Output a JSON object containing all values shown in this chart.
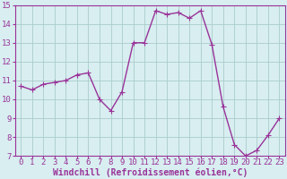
{
  "x": [
    0,
    1,
    2,
    3,
    4,
    5,
    6,
    7,
    8,
    9,
    10,
    11,
    12,
    13,
    14,
    15,
    16,
    17,
    18,
    19,
    20,
    21,
    22,
    23
  ],
  "y": [
    10.7,
    10.5,
    10.8,
    10.9,
    11.0,
    11.3,
    11.4,
    10.0,
    9.4,
    10.4,
    13.0,
    13.0,
    14.7,
    14.5,
    14.6,
    14.3,
    14.7,
    12.9,
    9.6,
    7.6,
    7.0,
    7.3,
    8.1,
    9.0
  ],
  "line_color": "#993399",
  "marker": "P",
  "marker_size": 2.5,
  "bg_color": "#d8eef0",
  "grid_color": "#aacccc",
  "xlabel": "Windchill (Refroidissement éolien,°C)",
  "xlim": [
    -0.5,
    23.5
  ],
  "ylim": [
    7,
    15
  ],
  "yticks": [
    7,
    8,
    9,
    10,
    11,
    12,
    13,
    14,
    15
  ],
  "xticks": [
    0,
    1,
    2,
    3,
    4,
    5,
    6,
    7,
    8,
    9,
    10,
    11,
    12,
    13,
    14,
    15,
    16,
    17,
    18,
    19,
    20,
    21,
    22,
    23
  ],
  "xlabel_fontsize": 7.0,
  "tick_fontsize": 6.5,
  "line_width": 1.0,
  "spine_color": "#993399",
  "label_color": "#993399"
}
